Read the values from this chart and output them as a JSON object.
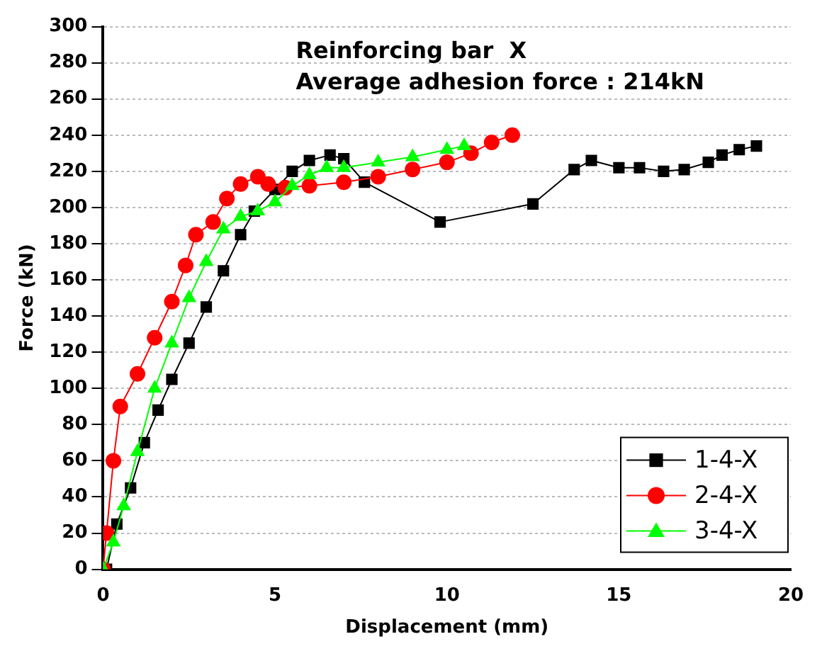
{
  "chart_data": {
    "type": "line",
    "xlabel": "Displacement (mm)",
    "ylabel": "Force (kN)",
    "annotations": [
      "Reinforcing bar  X",
      "Average adhesion force : 214kN"
    ],
    "xlim": [
      0,
      20
    ],
    "xticks": [
      0,
      5,
      10,
      15,
      20
    ],
    "ylim": [
      0,
      300
    ],
    "yticks": [
      0,
      20,
      40,
      60,
      80,
      100,
      120,
      140,
      160,
      180,
      200,
      220,
      240,
      260,
      280,
      300
    ],
    "grid": "y",
    "legend": "bottom right",
    "series": [
      {
        "name": "1-4-X",
        "color": "#000000",
        "marker": "square",
        "x": [
          0.1,
          0.4,
          0.8,
          1.2,
          1.6,
          2.0,
          2.5,
          3.0,
          3.5,
          4.0,
          4.4,
          5.0,
          5.5,
          6.0,
          6.6,
          7.0,
          7.6,
          9.8,
          12.5,
          13.7,
          14.2,
          15.0,
          15.6,
          16.3,
          16.9,
          17.6,
          18.0,
          18.5,
          19.0
        ],
        "values": [
          0,
          25,
          45,
          70,
          88,
          105,
          125,
          145,
          165,
          185,
          198,
          210,
          220,
          226,
          229,
          227,
          214,
          192,
          202,
          221,
          226,
          222,
          222,
          220,
          221,
          225,
          229,
          232,
          234
        ]
      },
      {
        "name": "2-4-X",
        "color": "#ff0000",
        "marker": "circle",
        "x": [
          0,
          0.1,
          0.3,
          0.5,
          1.0,
          1.5,
          2.0,
          2.4,
          2.7,
          3.2,
          3.6,
          4.0,
          4.5,
          4.8,
          5.3,
          6.0,
          7.0,
          8.0,
          9.0,
          10.0,
          10.7,
          11.3,
          11.9
        ],
        "values": [
          0,
          20,
          60,
          90,
          108,
          128,
          148,
          168,
          185,
          192,
          205,
          213,
          217,
          213,
          211,
          212,
          214,
          217,
          221,
          225,
          230,
          236,
          240
        ]
      },
      {
        "name": "3-4-X",
        "color": "#00ff00",
        "marker": "triangle",
        "x": [
          0,
          0.3,
          0.6,
          1.0,
          1.5,
          2.0,
          2.5,
          3.0,
          3.5,
          4.0,
          4.5,
          5.0,
          5.5,
          6.0,
          6.5,
          7.0,
          8.0,
          9.0,
          10.0,
          10.5
        ],
        "values": [
          0,
          15,
          35,
          65,
          100,
          125,
          150,
          170,
          188,
          195,
          198,
          203,
          212,
          218,
          222,
          222,
          225,
          228,
          232,
          234
        ]
      }
    ]
  }
}
